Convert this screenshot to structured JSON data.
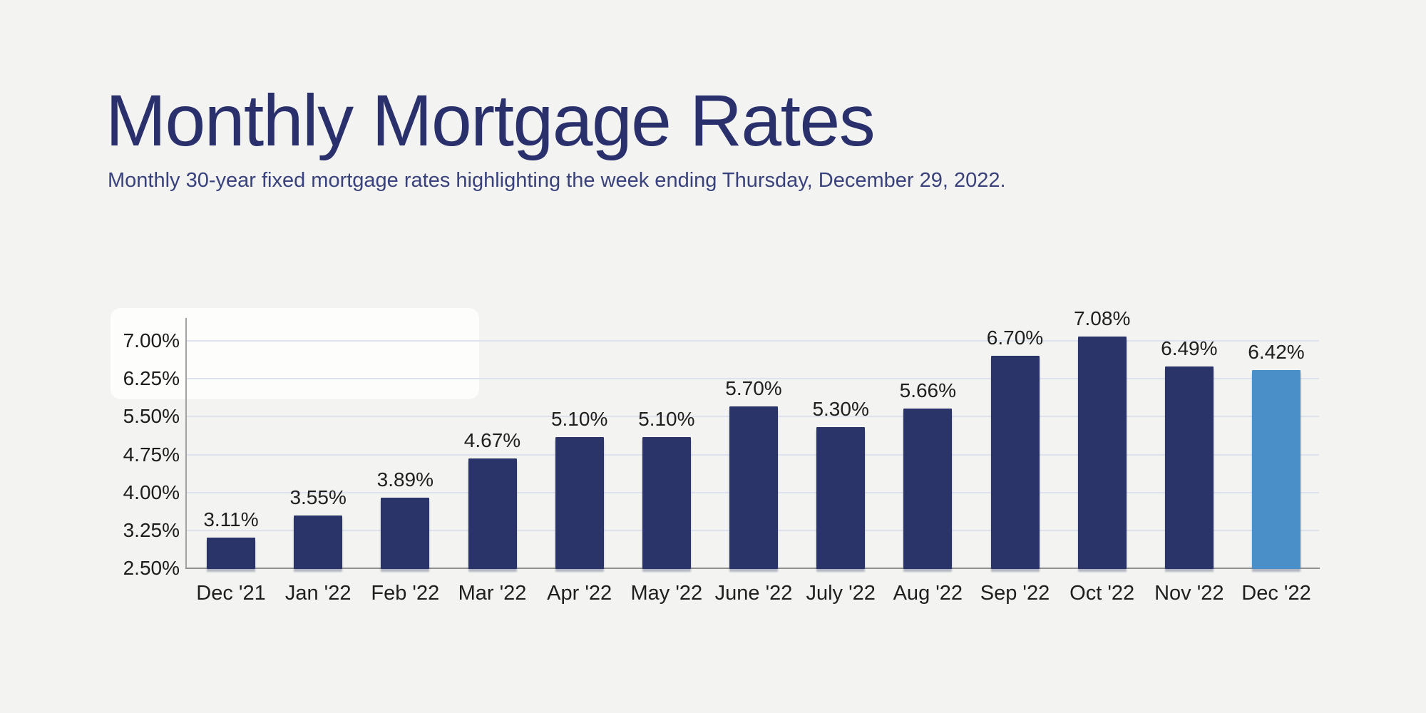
{
  "header": {
    "title": "Monthly Mortgage Rates",
    "subtitle": "Monthly 30-year fixed mortgage rates highlighting the week ending Thursday, December 29, 2022."
  },
  "chart_data": {
    "type": "bar",
    "title": "Monthly Mortgage Rates",
    "subtitle": "Monthly 30-year fixed mortgage rates highlighting the week ending Thursday, December 29, 2022.",
    "categories": [
      "Dec '21",
      "Jan '22",
      "Feb '22",
      "Mar '22",
      "Apr '22",
      "May '22",
      "June '22",
      "July '22",
      "Aug '22",
      "Sep '22",
      "Oct '22",
      "Nov '22",
      "Dec '22"
    ],
    "values": [
      3.11,
      3.55,
      3.89,
      4.67,
      5.1,
      5.1,
      5.7,
      5.3,
      5.66,
      6.7,
      7.08,
      6.49,
      6.42
    ],
    "value_labels": [
      "3.11%",
      "3.55%",
      "3.89%",
      "4.67%",
      "5.10%",
      "5.10%",
      "5.70%",
      "5.30%",
      "5.66%",
      "6.70%",
      "7.08%",
      "6.49%",
      "6.42%"
    ],
    "ytick_labels": [
      "7.00%",
      "6.25%",
      "5.50%",
      "4.75%",
      "4.00%",
      "3.25%",
      "2.50%"
    ],
    "ytick_values": [
      7.0,
      6.25,
      5.5,
      4.75,
      4.0,
      3.25,
      2.5
    ],
    "ylim": [
      2.5,
      7.0
    ],
    "xlabel": "",
    "ylabel": "",
    "grid": true,
    "legend": false,
    "highlight_index": 12,
    "highlight_category": "Dec '22",
    "colors": {
      "bar": "#2a3468",
      "highlight_bar": "#4a8fc7",
      "gridline": "#dde2ee",
      "axis": "#8f8f8f",
      "title": "#2a306b",
      "subtitle": "#39427c",
      "label_text": "#1f1f1f",
      "background": "#f3f3f1"
    }
  }
}
